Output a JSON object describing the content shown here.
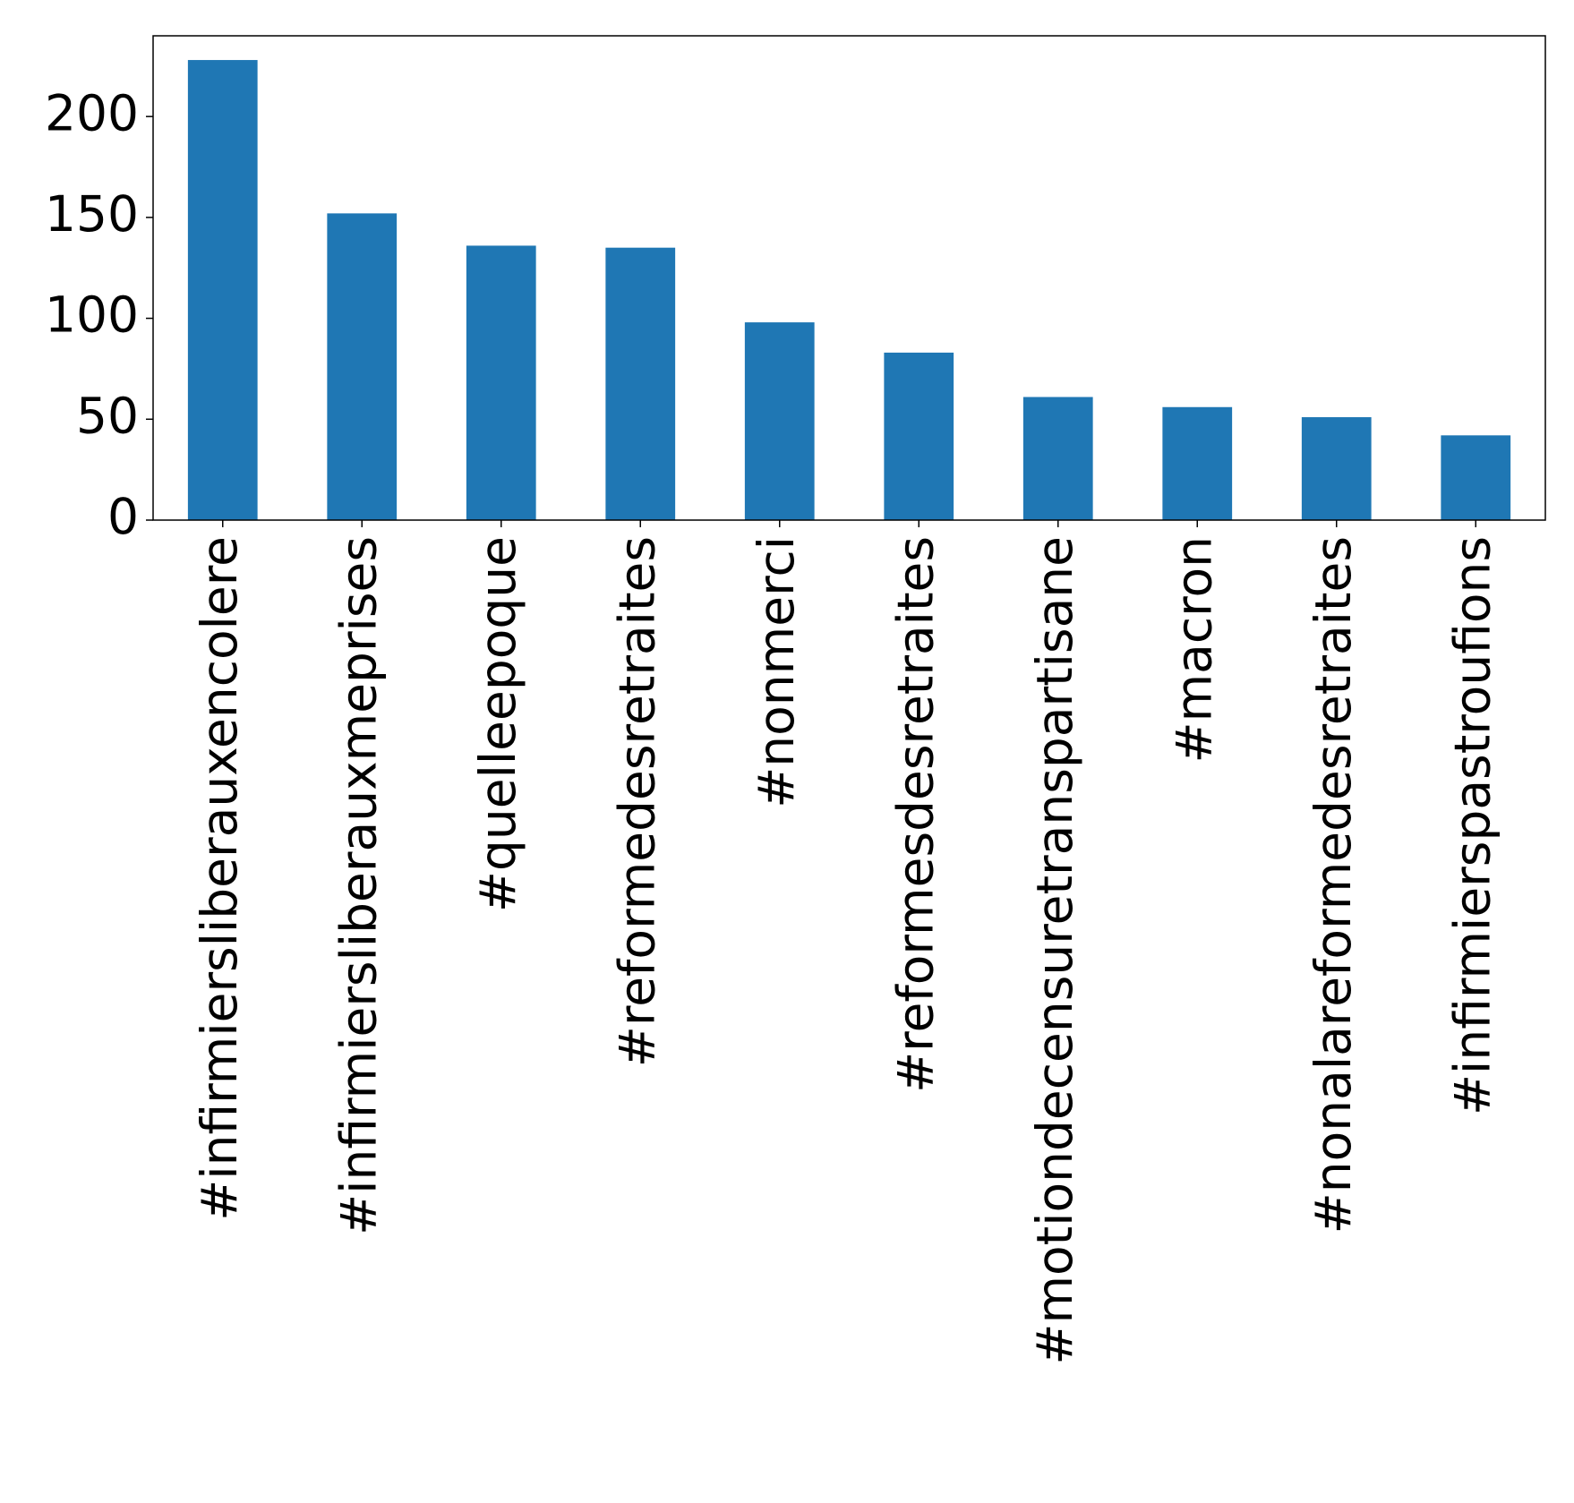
{
  "chart_data": {
    "type": "bar",
    "title": "",
    "xlabel": "",
    "ylabel": "",
    "categories": [
      "#infirmiersliberauxencolere",
      "#infirmiersliberauxmeprises",
      "#quelleepoque",
      "#reformedesretraites",
      "#nonmerci",
      "#reformesdesretraites",
      "#motiondecensuretranspartisane",
      "#macron",
      "#nonalareformedesretraites",
      "#infirmierspastroufions"
    ],
    "values": [
      228,
      152,
      136,
      135,
      98,
      83,
      61,
      56,
      51,
      42
    ],
    "ylim": [
      0,
      240
    ],
    "yticks": [
      0,
      50,
      100,
      150,
      200
    ],
    "ytick_labels": [
      "0",
      "50",
      "100",
      "150",
      "200"
    ],
    "grid": false,
    "legend": "none",
    "bar_color": "#1f77b4"
  }
}
